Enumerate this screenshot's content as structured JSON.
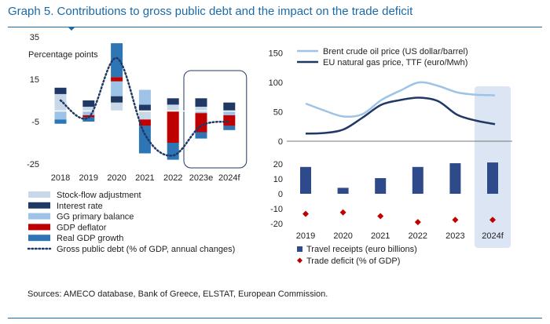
{
  "title": "Graph 5. Contributions to gross public debt and the impact on the trade deficit",
  "source": "Sources: AMECO database, Bank of Greece, ELSTAT, European Commission.",
  "colors": {
    "stock_flow": "#c9d8e8",
    "interest": "#1f3864",
    "primary": "#9dc3e6",
    "deflator": "#c00000",
    "real_gdp": "#2e75b6",
    "debt_line": "#1f3864",
    "brent": "#9dc3e6",
    "gas": "#1f3864",
    "travel": "#2f4a8a",
    "trade": "#c00000",
    "highlight": "#dbe5f3"
  },
  "chart_data": [
    {
      "type": "bar",
      "stacked": true,
      "ylabel": "Percentage points",
      "ylim": [
        -25,
        35
      ],
      "yticks": [
        35,
        15,
        -5,
        -25
      ],
      "categories": [
        "2018",
        "2019",
        "2020",
        "2021",
        "2022",
        "2023e",
        "2024f"
      ],
      "highlight_categories": [
        "2023e",
        "2024f"
      ],
      "series": [
        {
          "name": "Stock-flow adjustment",
          "key": "stock_flow",
          "values": [
            8,
            2,
            4,
            -4,
            3,
            2,
            0
          ]
        },
        {
          "name": "Interest rate",
          "key": "interest",
          "values": [
            3,
            3,
            3,
            3,
            3,
            4,
            4
          ]
        },
        {
          "name": "GG primary balance",
          "key": "primary",
          "values": [
            -4,
            -2,
            7,
            7,
            0,
            -1,
            -2
          ]
        },
        {
          "name": "GDP deflator",
          "key": "deflator",
          "values": [
            0,
            -1,
            2,
            -3,
            -15,
            -9,
            -5
          ]
        },
        {
          "name": "Real GDP growth",
          "key": "real_gdp",
          "values": [
            -2,
            -2,
            16,
            -13,
            -8,
            -3,
            -2
          ]
        }
      ],
      "line": {
        "name": "Gross public debt  (% of GDP, annual changes)",
        "key": "debt_line",
        "values": [
          5,
          -3,
          25,
          -11,
          -21,
          -7,
          -5
        ]
      }
    },
    {
      "type": "line",
      "ylim": [
        0,
        150
      ],
      "yticks": [
        150,
        100,
        50,
        0
      ],
      "series": [
        {
          "name": "Brent crude oil price (US dollar/barrel)",
          "key": "brent",
          "x": [
            2019.0,
            2019.5,
            2020.0,
            2020.5,
            2021.0,
            2021.5,
            2022.0,
            2022.5,
            2023.0,
            2023.5,
            2024.0
          ],
          "values": [
            64,
            52,
            42,
            46,
            70,
            86,
            100,
            94,
            83,
            79,
            78
          ]
        },
        {
          "name": "EU natural gas price, TTF (euro/Mwh)",
          "key": "gas",
          "x": [
            2019.0,
            2019.5,
            2020.0,
            2020.5,
            2021.0,
            2021.5,
            2022.0,
            2022.5,
            2023.0,
            2023.5,
            2024.0
          ],
          "values": [
            13,
            14,
            20,
            40,
            62,
            70,
            74,
            68,
            45,
            35,
            29
          ]
        }
      ]
    },
    {
      "type": "bar",
      "ylim": [
        -20,
        20
      ],
      "yticks": [
        20,
        10,
        0,
        -10,
        -20
      ],
      "categories": [
        "2019",
        "2020",
        "2021",
        "2022",
        "2023",
        "2024f"
      ],
      "highlight_categories": [
        "2024f"
      ],
      "bars": {
        "name": "Travel receipts (euro billions)",
        "key": "travel",
        "values": [
          18,
          4,
          10.5,
          18,
          20.5,
          21
        ]
      },
      "markers": {
        "name": "Trade deficit (% of GDP)",
        "key": "trade",
        "values": [
          -13.5,
          -12.5,
          -15,
          -19,
          -17.5,
          -17.5
        ]
      }
    }
  ]
}
